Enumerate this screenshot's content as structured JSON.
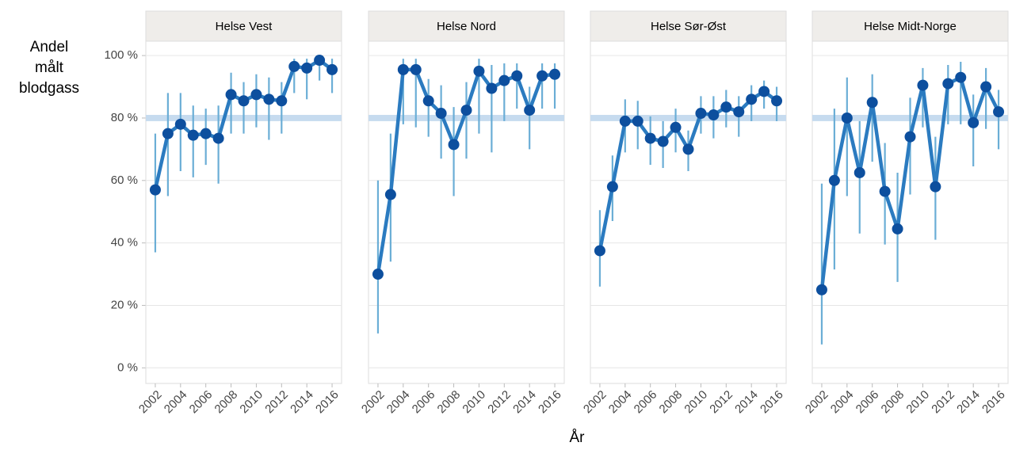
{
  "y_label": [
    "Andel",
    "målt",
    "blodgass"
  ],
  "x_label": "År",
  "ylim": [
    -5,
    104.6
  ],
  "yticks": [
    {
      "value": 0,
      "label": "0 %"
    },
    {
      "value": 20,
      "label": "20 %"
    },
    {
      "value": 40,
      "label": "40 %"
    },
    {
      "value": 60,
      "label": "60 %"
    },
    {
      "value": 80,
      "label": "80 %"
    },
    {
      "value": 100,
      "label": "100 %"
    }
  ],
  "target_band": [
    79,
    81
  ],
  "band_color": "#c6dbef",
  "grid": true,
  "chart_data": [
    {
      "type": "line",
      "title": "Helse Vest",
      "xlim": [
        2001.25,
        2016.75
      ],
      "xticks": [
        2002,
        2004,
        2006,
        2008,
        2010,
        2012,
        2014,
        2016
      ],
      "x": [
        2002,
        2003,
        2004,
        2005,
        2006,
        2007,
        2008,
        2009,
        2010,
        2011,
        2012,
        2013,
        2014,
        2015,
        2016
      ],
      "values": [
        57,
        75,
        78,
        74.5,
        75,
        73.5,
        87.5,
        85.5,
        87.5,
        86,
        85.5,
        96.5,
        96,
        98.5,
        95.5
      ],
      "lower": [
        37,
        55,
        63,
        61,
        65,
        59,
        75,
        75,
        77,
        73,
        75,
        88,
        86,
        92,
        88
      ],
      "upper": [
        75,
        88,
        88,
        84,
        83,
        84,
        94.5,
        91.5,
        94,
        93,
        91.5,
        99,
        99,
        100,
        99
      ],
      "color": "#2b7bc0",
      "point_color": "#0d4f9e",
      "error_color": "#6baed6"
    },
    {
      "type": "line",
      "title": "Helse Nord",
      "xlim": [
        2001.25,
        2016.75
      ],
      "xticks": [
        2002,
        2004,
        2006,
        2008,
        2010,
        2012,
        2014,
        2016
      ],
      "x": [
        2002,
        2003,
        2004,
        2005,
        2006,
        2007,
        2008,
        2009,
        2010,
        2011,
        2012,
        2013,
        2014,
        2015,
        2016
      ],
      "values": [
        30,
        55.5,
        95.5,
        95.5,
        85.5,
        81.5,
        71.5,
        82.5,
        95,
        89.5,
        92,
        93.5,
        82.5,
        93.5,
        94
      ],
      "lower": [
        11,
        34,
        78,
        77,
        74,
        67,
        55,
        67,
        75,
        69,
        79,
        83,
        70,
        83,
        83
      ],
      "upper": [
        60,
        75,
        99,
        99,
        92.5,
        90.5,
        83.5,
        91.5,
        99,
        97,
        97.5,
        97.5,
        90,
        97.5,
        97.5
      ],
      "color": "#2b7bc0",
      "point_color": "#0d4f9e",
      "error_color": "#6baed6"
    },
    {
      "type": "line",
      "title": "Helse Sør-Øst",
      "xlim": [
        2001.25,
        2016.75
      ],
      "xticks": [
        2002,
        2004,
        2006,
        2008,
        2010,
        2012,
        2014,
        2016
      ],
      "x": [
        2002,
        2003,
        2004,
        2005,
        2006,
        2007,
        2008,
        2009,
        2010,
        2011,
        2012,
        2013,
        2014,
        2015,
        2016
      ],
      "values": [
        37.5,
        58,
        79,
        79,
        73.5,
        72.5,
        77,
        70,
        81.5,
        81,
        83.5,
        82,
        86,
        88.5,
        85.5
      ],
      "lower": [
        26,
        47,
        69,
        70,
        65,
        64,
        69,
        63,
        75,
        73.5,
        77,
        74,
        79,
        83,
        79
      ],
      "upper": [
        50.5,
        68,
        86,
        85.5,
        80.5,
        79,
        83,
        76,
        87,
        87,
        89,
        87,
        90.5,
        92,
        90
      ],
      "color": "#2b7bc0",
      "point_color": "#0d4f9e",
      "error_color": "#6baed6"
    },
    {
      "type": "line",
      "title": "Helse Midt-Norge",
      "xlim": [
        2001.25,
        2016.75
      ],
      "xticks": [
        2002,
        2004,
        2006,
        2008,
        2010,
        2012,
        2014,
        2016
      ],
      "x": [
        2002,
        2003,
        2004,
        2005,
        2006,
        2007,
        2008,
        2009,
        2010,
        2011,
        2012,
        2013,
        2014,
        2015,
        2016
      ],
      "values": [
        25,
        60,
        80,
        62.5,
        85,
        56.5,
        44.5,
        74,
        90.5,
        58,
        91,
        93,
        78.5,
        90,
        82
      ],
      "lower": [
        7.5,
        31.5,
        55,
        43,
        66,
        39.5,
        27.5,
        55.5,
        77,
        41,
        78,
        78,
        64.5,
        76.5,
        70
      ],
      "upper": [
        59,
        83,
        93,
        79,
        94,
        72,
        62.5,
        86.5,
        96,
        74,
        97,
        98,
        87.5,
        96,
        89
      ],
      "color": "#2b7bc0",
      "point_color": "#0d4f9e",
      "error_color": "#6baed6"
    }
  ]
}
